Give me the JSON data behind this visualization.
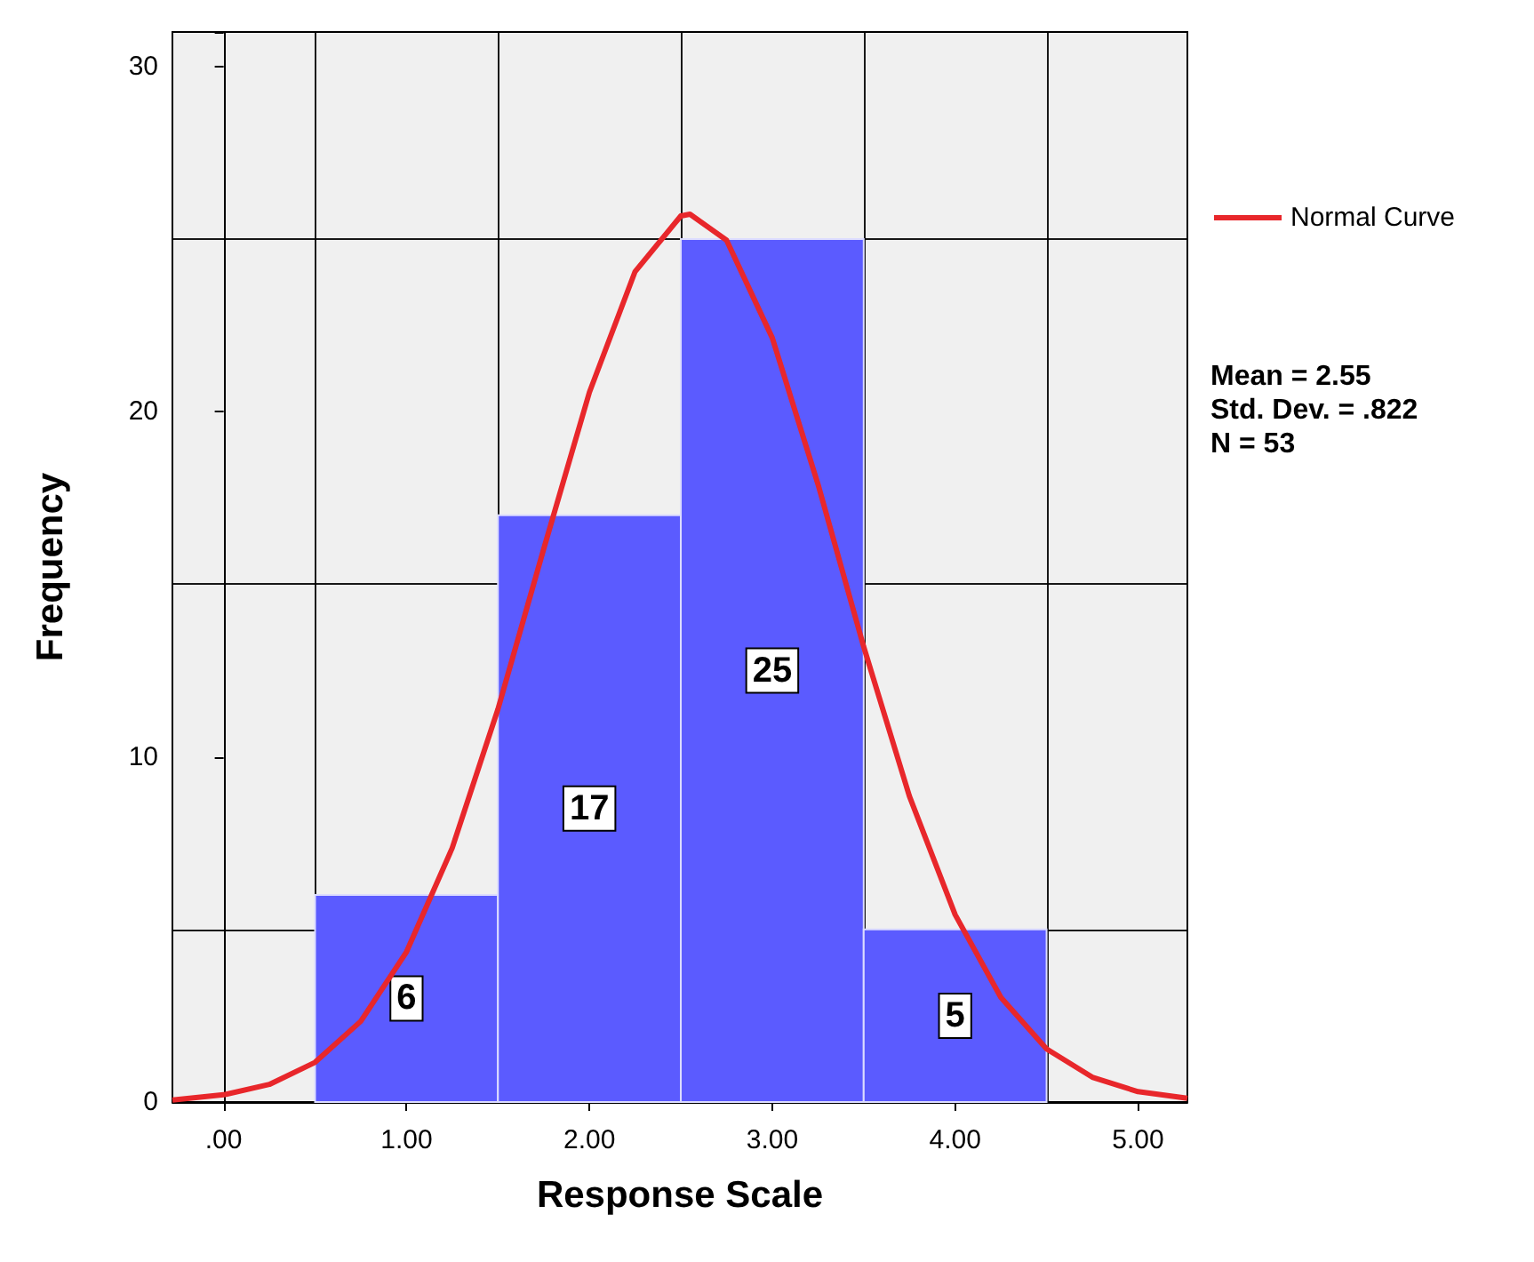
{
  "chart_data": {
    "type": "histogram",
    "xlabel": "Response Scale",
    "ylabel": "Frequency",
    "bins": [
      0.5,
      1.5,
      2.5,
      3.5,
      4.5
    ],
    "values": [
      6,
      17,
      25,
      5
    ],
    "color": "#5b5bff",
    "value_labels": [
      "6",
      "17",
      "25",
      "5"
    ],
    "series": [
      {
        "type": "line",
        "name": "Normal Curve",
        "color": "#e8272b",
        "x": [
          -0.28,
          0,
          0.25,
          0.5,
          0.75,
          1.0,
          1.25,
          1.5,
          1.75,
          2.0,
          2.25,
          2.5,
          2.55,
          2.75,
          3.0,
          3.25,
          3.5,
          3.75,
          4.0,
          4.25,
          4.5,
          4.75,
          5.0,
          5.27
        ],
        "values": [
          0.06,
          0.21,
          0.51,
          1.15,
          2.34,
          4.35,
          7.36,
          11.38,
          16.02,
          20.56,
          24.06,
          25.67,
          25.72,
          24.97,
          22.14,
          17.9,
          13.19,
          8.86,
          5.43,
          3.03,
          1.54,
          0.72,
          0.3,
          0.11
        ]
      }
    ],
    "xlim": [
      -0.28,
      5.27
    ],
    "xticks": [
      {
        "value": 0,
        "label": ".00"
      },
      {
        "value": 1,
        "label": "1.00"
      },
      {
        "value": 2,
        "label": "2.00"
      },
      {
        "value": 3,
        "label": "3.00"
      },
      {
        "value": 4,
        "label": "4.00"
      },
      {
        "value": 5,
        "label": "5.00"
      }
    ],
    "ylim": [
      0,
      31
    ],
    "yticks": [
      0,
      10,
      20,
      30
    ],
    "grid": true,
    "legend": "top right",
    "annotations": [
      "Mean = 2.55",
      "Std. Dev. = .822",
      "N = 53"
    ]
  }
}
